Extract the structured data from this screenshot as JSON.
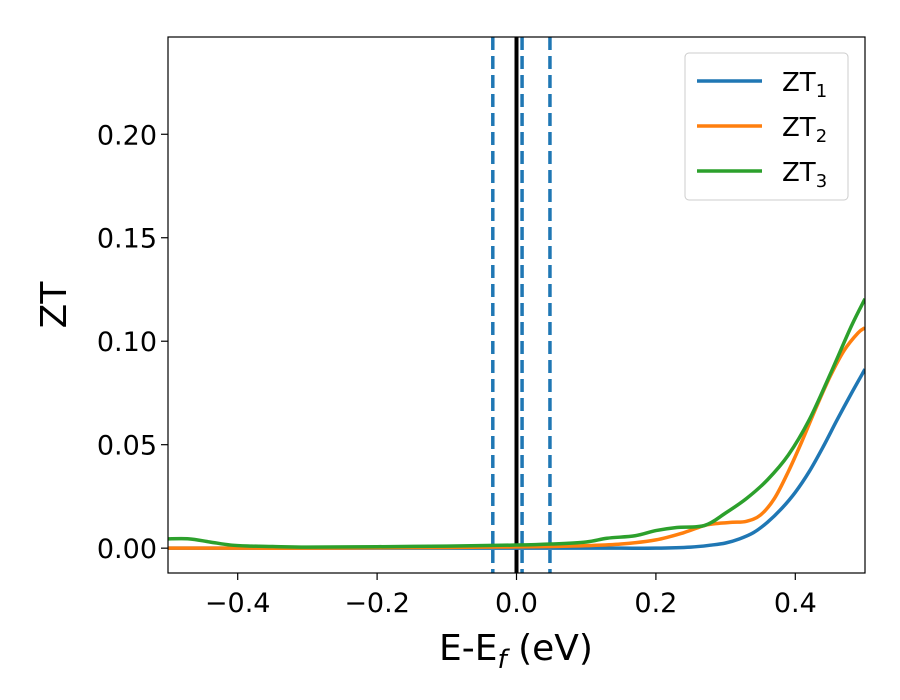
{
  "chart_data": {
    "type": "line",
    "xlabel": "E-E",
    "xlabel_sub": "f",
    "xlabel_unit": " (eV)",
    "ylabel": "ZT",
    "xlim": [
      -0.5,
      0.5
    ],
    "ylim": [
      -0.012,
      0.247
    ],
    "x_ticks": [
      -0.4,
      -0.2,
      0.0,
      0.2,
      0.4
    ],
    "x_tick_labels": [
      "−0.4",
      "−0.2",
      "0.0",
      "0.2",
      "0.4"
    ],
    "y_ticks": [
      0.0,
      0.05,
      0.1,
      0.15,
      0.2
    ],
    "y_tick_labels": [
      "0.00",
      "0.05",
      "0.10",
      "0.15",
      "0.20"
    ],
    "grid": false,
    "legend_position": "top-right",
    "series": [
      {
        "name": "ZT",
        "name_sub": "1",
        "color": "#1f77b4",
        "x": [
          -0.5,
          -0.4,
          -0.3,
          -0.2,
          -0.1,
          0.0,
          0.05,
          0.1,
          0.15,
          0.2,
          0.25,
          0.28,
          0.3,
          0.32,
          0.34,
          0.36,
          0.38,
          0.4,
          0.42,
          0.44,
          0.46,
          0.48,
          0.5
        ],
        "y": [
          0.0,
          0.0,
          0.0,
          0.0,
          0.0,
          0.0,
          0.0,
          0.0,
          0.0,
          0.0,
          0.0005,
          0.0015,
          0.0025,
          0.0045,
          0.0075,
          0.0125,
          0.019,
          0.027,
          0.037,
          0.049,
          0.062,
          0.0745,
          0.0865
        ]
      },
      {
        "name": "ZT",
        "name_sub": "2",
        "color": "#ff7f0e",
        "x": [
          -0.5,
          -0.4,
          -0.3,
          -0.2,
          -0.1,
          -0.05,
          0.0,
          0.05,
          0.1,
          0.15,
          0.2,
          0.24,
          0.27,
          0.29,
          0.31,
          0.33,
          0.35,
          0.37,
          0.39,
          0.41,
          0.43,
          0.45,
          0.47,
          0.49,
          0.5
        ],
        "y": [
          0.0,
          0.0,
          0.0,
          0.0002,
          0.0003,
          0.0005,
          0.0006,
          0.0008,
          0.0012,
          0.002,
          0.004,
          0.0075,
          0.011,
          0.012,
          0.0125,
          0.013,
          0.016,
          0.024,
          0.037,
          0.052,
          0.068,
          0.083,
          0.0955,
          0.104,
          0.1065
        ]
      },
      {
        "name": "ZT",
        "name_sub": "3",
        "color": "#2ca02c",
        "x": [
          -0.5,
          -0.47,
          -0.44,
          -0.41,
          -0.38,
          -0.35,
          -0.3,
          -0.2,
          -0.1,
          0.0,
          0.05,
          0.1,
          0.13,
          0.17,
          0.2,
          0.23,
          0.27,
          0.3,
          0.33,
          0.36,
          0.39,
          0.42,
          0.45,
          0.48,
          0.5
        ],
        "y": [
          0.0045,
          0.0045,
          0.003,
          0.0015,
          0.001,
          0.0008,
          0.0005,
          0.0007,
          0.001,
          0.0015,
          0.002,
          0.003,
          0.0048,
          0.006,
          0.0085,
          0.01,
          0.011,
          0.017,
          0.024,
          0.033,
          0.045,
          0.062,
          0.084,
          0.107,
          0.1205
        ]
      }
    ],
    "vlines": [
      {
        "x": 0.0,
        "color": "#000000",
        "style": "solid"
      },
      {
        "x": -0.034,
        "color": "#1f77b4",
        "style": "dashed"
      },
      {
        "x": 0.008,
        "color": "#1f77b4",
        "style": "dashed"
      },
      {
        "x": 0.048,
        "color": "#1f77b4",
        "style": "dashed"
      }
    ]
  }
}
